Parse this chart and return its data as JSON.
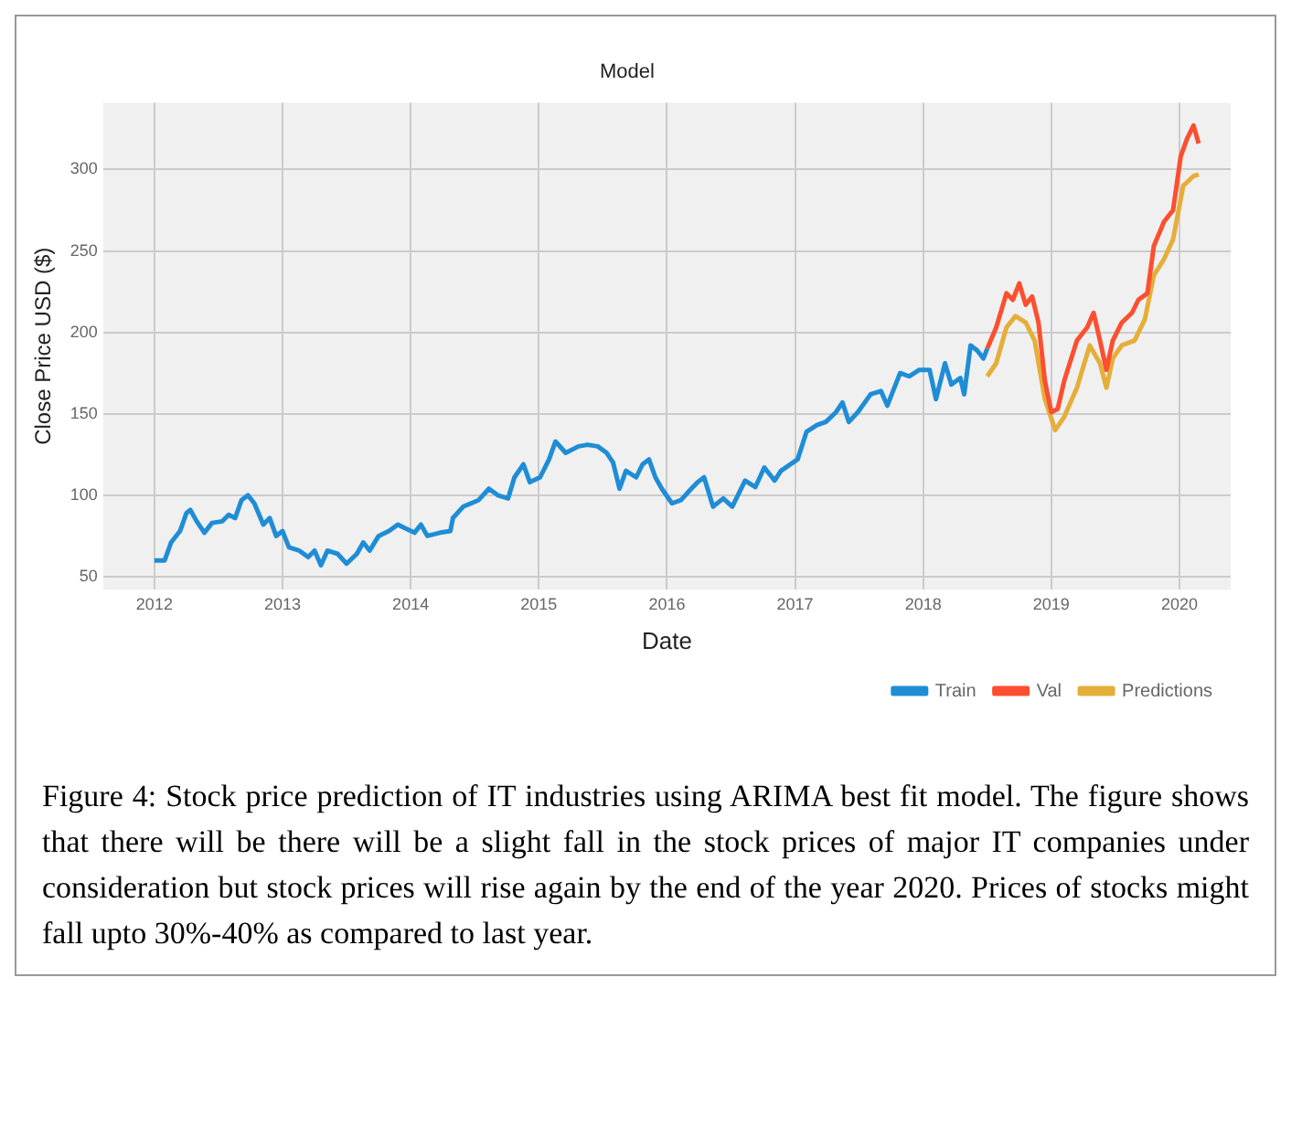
{
  "chart_data": {
    "type": "line",
    "title": "Model",
    "xlabel": "Date",
    "ylabel": "Close Price USD ($)",
    "xlim": [
      2011.6,
      2020.4
    ],
    "ylim": [
      42,
      341
    ],
    "xticks": [
      2012,
      2013,
      2014,
      2015,
      2016,
      2017,
      2018,
      2019,
      2020
    ],
    "yticks": [
      50,
      100,
      150,
      200,
      250,
      300
    ],
    "grid": true,
    "legend": "bottom right",
    "series": [
      {
        "name": "Train",
        "color": "#1f8dd6",
        "x": [
          2012.0,
          2012.08,
          2012.13,
          2012.2,
          2012.25,
          2012.28,
          2012.33,
          2012.39,
          2012.45,
          2012.53,
          2012.58,
          2012.63,
          2012.68,
          2012.73,
          2012.78,
          2012.85,
          2012.9,
          2012.95,
          2013.0,
          2013.05,
          2013.13,
          2013.2,
          2013.25,
          2013.3,
          2013.35,
          2013.43,
          2013.5,
          2013.58,
          2013.63,
          2013.68,
          2013.75,
          2013.83,
          2013.9,
          2013.95,
          2014.03,
          2014.08,
          2014.13,
          2014.23,
          2014.31,
          2014.33,
          2014.41,
          2014.53,
          2014.61,
          2014.68,
          2014.76,
          2014.81,
          2014.88,
          2014.93,
          2015.01,
          2015.08,
          2015.13,
          2015.21,
          2015.31,
          2015.38,
          2015.46,
          2015.53,
          2015.58,
          2015.63,
          2015.68,
          2015.76,
          2015.81,
          2015.86,
          2015.91,
          2015.96,
          2016.04,
          2016.11,
          2016.19,
          2016.24,
          2016.29,
          2016.36,
          2016.44,
          2016.51,
          2016.61,
          2016.69,
          2016.76,
          2016.84,
          2016.89,
          2017.02,
          2017.09,
          2017.17,
          2017.24,
          2017.32,
          2017.37,
          2017.42,
          2017.49,
          2017.59,
          2017.67,
          2017.72,
          2017.82,
          2017.89,
          2017.97,
          2018.05,
          2018.1,
          2018.17,
          2018.22,
          2018.29,
          2018.32,
          2018.37,
          2018.42,
          2018.47,
          2018.5
        ],
        "values": [
          60,
          60,
          71,
          78,
          89,
          91,
          84,
          77,
          83,
          84,
          88,
          86,
          97,
          100,
          95,
          82,
          86,
          75,
          78,
          68,
          66,
          62,
          66,
          57,
          66,
          64,
          58,
          64,
          71,
          66,
          75,
          78,
          82,
          80,
          77,
          82,
          75,
          77,
          78,
          86,
          93,
          97,
          104,
          100,
          98,
          111,
          119,
          108,
          111,
          122,
          133,
          126,
          130,
          131,
          130,
          126,
          120,
          104,
          115,
          111,
          119,
          122,
          111,
          104,
          95,
          97,
          104,
          108,
          111,
          93,
          98,
          93,
          109,
          105,
          117,
          109,
          115,
          122,
          139,
          143,
          145,
          151,
          157,
          145,
          151,
          162,
          164,
          155,
          175,
          173,
          177,
          177,
          159,
          181,
          168,
          172,
          162,
          192,
          189,
          184,
          190
        ]
      },
      {
        "name": "Val",
        "color": "#fc4f30",
        "x": [
          2018.5,
          2018.57,
          2018.65,
          2018.7,
          2018.75,
          2018.8,
          2018.85,
          2018.9,
          2018.95,
          2019.0,
          2019.05,
          2019.1,
          2019.2,
          2019.28,
          2019.33,
          2019.38,
          2019.43,
          2019.48,
          2019.55,
          2019.63,
          2019.68,
          2019.75,
          2019.8,
          2019.88,
          2019.95,
          2020.01,
          2020.06,
          2020.11,
          2020.15
        ],
        "values": [
          190,
          203,
          224,
          220,
          230,
          217,
          222,
          206,
          170,
          151,
          153,
          170,
          195,
          203,
          212,
          195,
          177,
          195,
          206,
          212,
          220,
          224,
          253,
          268,
          275,
          308,
          319,
          327,
          316
        ]
      },
      {
        "name": "Predictions",
        "color": "#e5ae38",
        "x": [
          2018.5,
          2018.57,
          2018.65,
          2018.72,
          2018.8,
          2018.87,
          2018.95,
          2019.03,
          2019.1,
          2019.2,
          2019.3,
          2019.38,
          2019.43,
          2019.48,
          2019.55,
          2019.65,
          2019.73,
          2019.8,
          2019.88,
          2019.95,
          2020.03,
          2020.11,
          2020.15
        ],
        "values": [
          173,
          181,
          203,
          210,
          206,
          195,
          159,
          140,
          148,
          166,
          192,
          181,
          166,
          184,
          192,
          195,
          208,
          235,
          245,
          257,
          290,
          296,
          297
        ]
      }
    ],
    "annotations": [
      "Figure 4: Stock price prediction of IT industries using ARIMA best fit model. The figure shows that there will be there will be a slight fall in the stock prices of major IT companies under consideration but stock prices will rise again by the end of the year 2020. Prices of stocks might fall upto 30%-40% as compared to last year."
    ]
  }
}
